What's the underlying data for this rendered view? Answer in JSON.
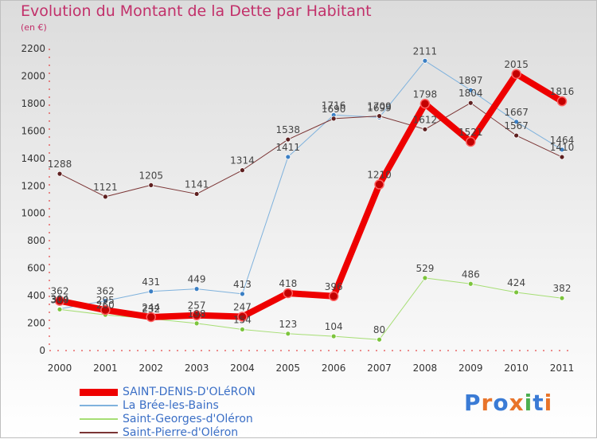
{
  "title": "Evolution du Montant de la Dette par Habitant",
  "subtitle": "(en €)",
  "logo": {
    "text": "Proxiti",
    "letters": [
      {
        "ch": "P",
        "color": "#3a7bd5"
      },
      {
        "ch": "r",
        "color": "#e8742a"
      },
      {
        "ch": "o",
        "color": "#3a7bd5"
      },
      {
        "ch": "x",
        "color": "#e8742a"
      },
      {
        "ch": "i",
        "color": "#4caf50"
      },
      {
        "ch": "t",
        "color": "#3a7bd5"
      },
      {
        "ch": "i",
        "color": "#e8742a"
      }
    ]
  },
  "chart_data": {
    "type": "line",
    "x": [
      "2000",
      "2001",
      "2002",
      "2003",
      "2004",
      "2005",
      "2006",
      "2007",
      "2008",
      "2009",
      "2010",
      "2011"
    ],
    "yticks": [
      "0",
      "200",
      "400",
      "600",
      "800",
      "1000",
      "1200",
      "1400",
      "1600",
      "1800",
      "2000",
      "2200"
    ],
    "ylim": [
      0,
      2200
    ],
    "grid": false,
    "legend_position": "bottom-left",
    "series": [
      {
        "name": "SAINT-DENIS-D'OLéRON",
        "color": "#ee0000",
        "marker": "#c40000",
        "width": 8,
        "values": [
          362,
          295,
          244,
          257,
          247,
          418,
          396,
          1210,
          1798,
          1521,
          2015,
          1816
        ]
      },
      {
        "name": "La Brée-les-Bains",
        "color": "#7fb2dd",
        "marker": "#3b7fc4",
        "width": 1,
        "values": [
          304,
          362,
          431,
          449,
          413,
          1411,
          1716,
          1699,
          2111,
          1897,
          1667,
          1464
        ]
      },
      {
        "name": "Saint-Georges-d'Oléron",
        "color": "#a6de74",
        "marker": "#7cc43c",
        "width": 1,
        "values": [
          300,
          260,
          232,
          198,
          154,
          123,
          104,
          80,
          529,
          486,
          424,
          382
        ]
      },
      {
        "name": "Saint-Pierre-d'Oléron",
        "color": "#7b3535",
        "marker": "#5e2020",
        "width": 1,
        "values": [
          1288,
          1121,
          1205,
          1141,
          1314,
          1538,
          1690,
          1709,
          1612,
          1804,
          1567,
          1410
        ]
      }
    ]
  }
}
